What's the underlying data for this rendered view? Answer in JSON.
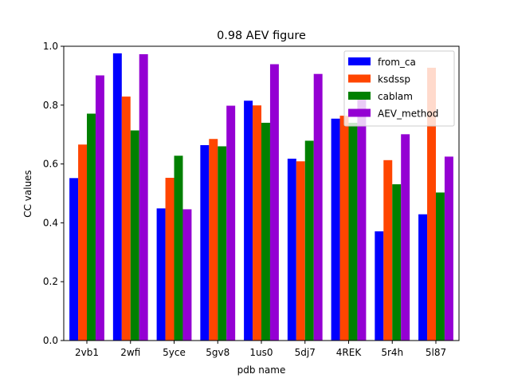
{
  "chart_data": {
    "type": "bar",
    "title": "0.98 AEV figure",
    "xlabel": "pdb name",
    "ylabel": "CC values",
    "ylim": [
      0,
      1.0
    ],
    "yticks": [
      "0.0",
      "0.2",
      "0.4",
      "0.6",
      "0.8",
      "1.0"
    ],
    "categories": [
      "2vb1",
      "2wfi",
      "5yce",
      "5gv8",
      "1us0",
      "5dj7",
      "4REK",
      "5r4h",
      "5l87"
    ],
    "series": [
      {
        "name": "from_ca",
        "color": "#0000ff",
        "values": [
          0.552,
          0.976,
          0.449,
          0.664,
          0.815,
          0.618,
          0.754,
          0.371,
          0.429
        ]
      },
      {
        "name": "ksdssp",
        "color": "#ff4500",
        "values": [
          0.666,
          0.829,
          0.553,
          0.685,
          0.799,
          0.609,
          0.764,
          0.613,
          0.927
        ]
      },
      {
        "name": "cablam",
        "color": "#008000",
        "values": [
          0.771,
          0.714,
          0.628,
          0.66,
          0.74,
          0.679,
          0.74,
          0.531,
          0.503
        ]
      },
      {
        "name": "AEV_method",
        "color": "#9400d3",
        "values": [
          0.901,
          0.973,
          0.446,
          0.798,
          0.939,
          0.906,
          0.82,
          0.701,
          0.625
        ]
      }
    ],
    "legend": "top-right",
    "grid": false
  }
}
